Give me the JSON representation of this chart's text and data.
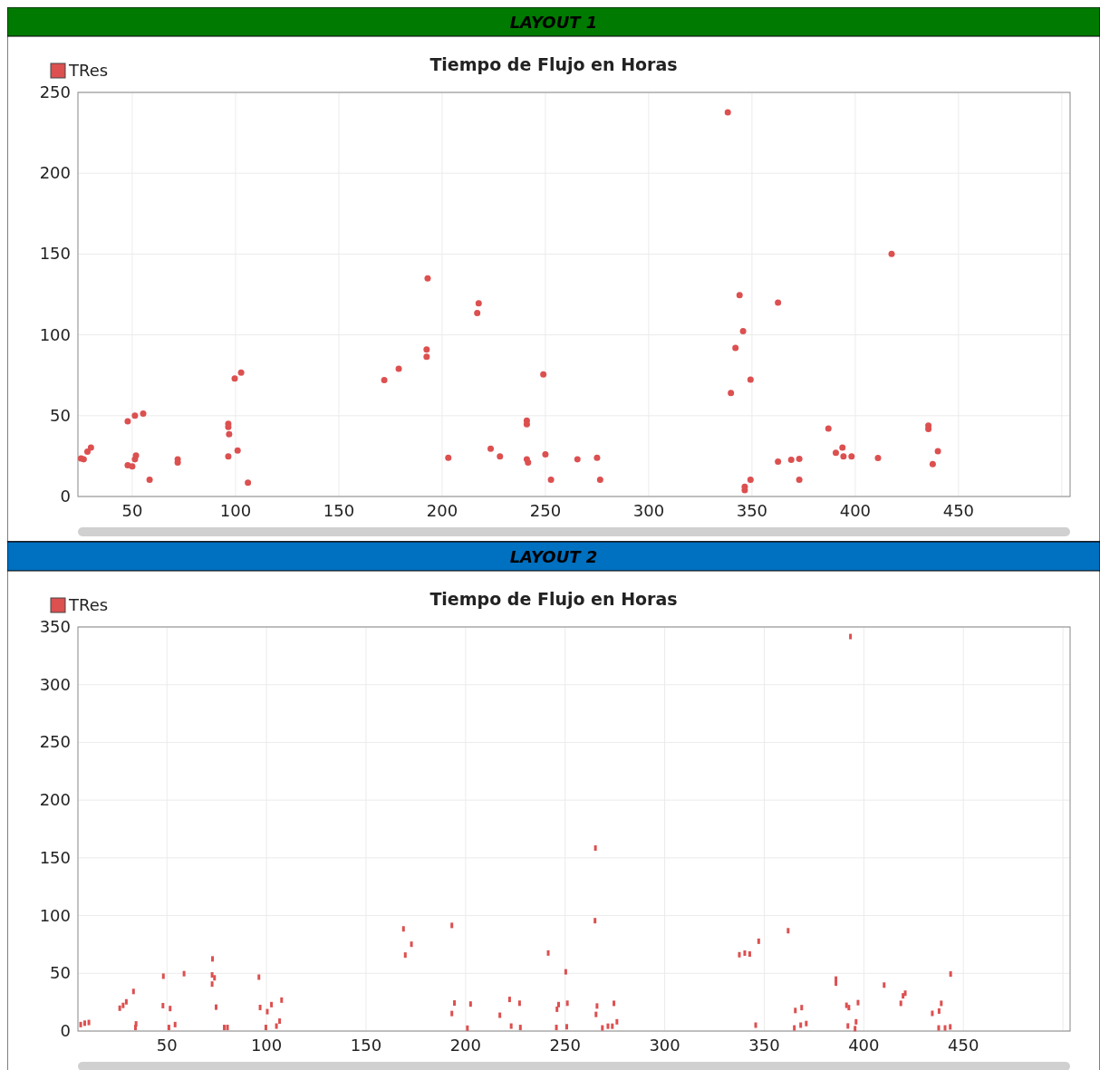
{
  "chart_data": [
    {
      "type": "scatter",
      "subtitle": "LAYOUT 1",
      "title": "Tiempo de Flujo en Horas",
      "legend": "top left",
      "marker": "circle",
      "grid": true,
      "xlim": [
        23.7,
        504
      ],
      "xticks": [
        50,
        100,
        150,
        200,
        250,
        300,
        350,
        400,
        450,
        {
          "value": 500,
          "label": null
        }
      ],
      "ylim": [
        0,
        250
      ],
      "yticks": [
        0,
        50,
        100,
        150,
        200,
        250
      ],
      "series": [
        {
          "name": "TRes",
          "color": "#dc5050",
          "x": [
            25.2,
            26.5,
            28.3,
            30,
            47.8,
            47.8,
            50,
            51.3,
            51.8,
            51.3,
            55.3,
            58.4,
            72,
            72,
            96.5,
            96.5,
            96.9,
            96.5,
            99.6,
            102.7,
            101,
            106,
            172,
            179,
            193,
            192.5,
            192.5,
            203,
            217.7,
            217,
            223.5,
            228,
            241,
            241,
            241,
            241.6,
            249,
            250,
            252.7,
            265.5,
            275,
            276.5,
            338.3,
            344,
            362.6,
            345.7,
            342,
            349.3,
            339.8,
            349.3,
            346.5,
            346.5,
            362.6,
            369,
            372.9,
            372.9,
            387,
            390.6,
            393.8,
            394.3,
            398.2,
            411,
            417.6,
            435.4,
            435.4,
            440,
            437.5
          ],
          "values": [
            23.5,
            23,
            27.8,
            30.2,
            46.5,
            19.3,
            18.7,
            23,
            25.4,
            50,
            51.3,
            10.3,
            23,
            21,
            45,
            43,
            38.6,
            24.8,
            73,
            76.7,
            28.4,
            8.5,
            72,
            79,
            135,
            91,
            86.4,
            24,
            119.6,
            113.5,
            29.6,
            24.8,
            47,
            44.7,
            23,
            21,
            75.5,
            26,
            10.3,
            23,
            24,
            10.3,
            237.7,
            124.6,
            120,
            102.3,
            91.9,
            72.3,
            64,
            10.3,
            3.9,
            6,
            21.6,
            22.7,
            23.3,
            10.4,
            42,
            27,
            30.3,
            24.8,
            24.8,
            23.8,
            150.1,
            43.8,
            41.7,
            28,
            20
          ]
        }
      ]
    },
    {
      "type": "scatter",
      "subtitle": "LAYOUT 2",
      "title": "Tiempo de Flujo en Horas",
      "legend": "top left",
      "marker": "square",
      "grid": true,
      "xlim": [
        5.3,
        503.6
      ],
      "xticks": [
        50,
        100,
        150,
        200,
        250,
        300,
        350,
        400,
        450,
        {
          "value": 500,
          "label": null
        }
      ],
      "ylim": [
        0,
        350
      ],
      "yticks": [
        0,
        50,
        100,
        150,
        200,
        250,
        300,
        350
      ],
      "series": [
        {
          "name": "TRes",
          "color": "#dc5050",
          "x": [
            6.7,
            8.7,
            10.8,
            26.3,
            28,
            29.6,
            33.2,
            34.5,
            34.2,
            48.2,
            48,
            51.6,
            51,
            54.1,
            58.6,
            72.9,
            72.7,
            73.9,
            72.7,
            74.7,
            78.8,
            80.4,
            96.2,
            96.8,
            100.4,
            102.5,
            107.6,
            99.7,
            105,
            106.6,
            168.8,
            172.8,
            169.7,
            193.1,
            193.1,
            194.4,
            200.9,
            202.5,
            217.2,
            222.1,
            227.1,
            222.9,
            227.5,
            241.5,
            250.3,
            245.9,
            246.7,
            251.1,
            245.6,
            250.8,
            393.3,
            265.2,
            265,
            362,
            347.2,
            337.5,
            340.2,
            342.7,
            266,
            265.5,
            274.5,
            268.7,
            271.5,
            273.7,
            276,
            345.7,
            386,
            386,
            410.2,
            420.8,
            419.7,
            418.6,
            443.6,
            391.3,
            392.5,
            397.1,
            365.6,
            368.8,
            365.1,
            368.3,
            371.1,
            392,
            396.1,
            395.6,
            434.4,
            437.8,
            438.9,
            437.6,
            440.8,
            443.4
          ],
          "values": [
            5.6,
            6.8,
            7.4,
            19.8,
            22.2,
            25.3,
            34.3,
            6.2,
            3.1,
            47.5,
            22,
            19.5,
            3.1,
            5.6,
            49.7,
            62.5,
            48.6,
            46.1,
            40.7,
            20.7,
            3.1,
            3.1,
            46.7,
            20.4,
            16.8,
            22.9,
            26.8,
            3.1,
            4.3,
            8.6,
            88.5,
            75.2,
            65.8,
            91.5,
            15.2,
            24.3,
            2.5,
            23.4,
            13.7,
            27.4,
            24.1,
            4.3,
            3.1,
            67.6,
            51.3,
            18.9,
            22.9,
            24.1,
            3.1,
            3.7,
            341.7,
            158.5,
            95.6,
            86.9,
            77.8,
            66.1,
            67.5,
            66.7,
            21.7,
            14.4,
            24,
            2.7,
            4.2,
            4.2,
            8,
            5.1,
            45,
            41.5,
            39.8,
            32.8,
            30.5,
            24,
            49.4,
            22.3,
            20.3,
            24.6,
            17.8,
            20.3,
            2.7,
            5.1,
            6.5,
            4.4,
            8,
            2.1,
            15.3,
            17.3,
            24,
            2.7,
            2.7,
            3.6
          ]
        }
      ]
    }
  ]
}
